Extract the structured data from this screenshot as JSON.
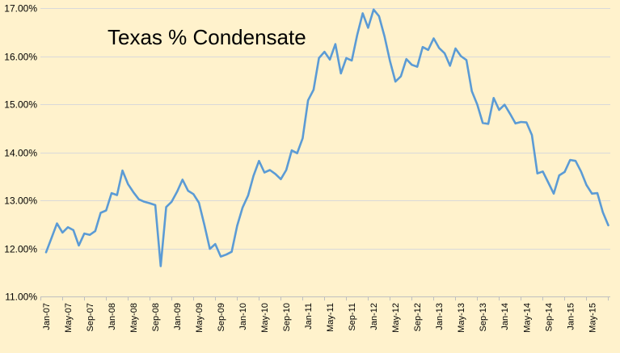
{
  "chart_data": {
    "type": "line",
    "title": "Texas % Condensate",
    "xlabel": "",
    "ylabel": "",
    "ylim": [
      11.0,
      17.0
    ],
    "y_ticks": [
      "11.00%",
      "12.00%",
      "13.00%",
      "14.00%",
      "15.00%",
      "16.00%",
      "17.00%"
    ],
    "y_tick_values": [
      11,
      12,
      13,
      14,
      15,
      16,
      17
    ],
    "x_tick_labels": [
      "Jan-07",
      "May-07",
      "Sep-07",
      "Jan-08",
      "May-08",
      "Sep-08",
      "Jan-09",
      "May-09",
      "Sep-09",
      "Jan-10",
      "May-10",
      "Sep-10",
      "Jan-11",
      "May-11",
      "Sep-11",
      "Jan-12",
      "May-12",
      "Sep-12",
      "Jan-13",
      "May-13",
      "Sep-13",
      "Jan-14",
      "May-14",
      "Sep-14",
      "Jan-15",
      "May-15"
    ],
    "grid": true,
    "legend": "none",
    "line_color": "#5b9bd5",
    "series": [
      {
        "values": [
          11.92,
          12.22,
          12.52,
          12.33,
          12.44,
          12.38,
          12.06,
          12.31,
          12.28,
          12.36,
          12.74,
          12.79,
          13.15,
          13.11,
          13.62,
          13.34,
          13.17,
          13.02,
          12.97,
          12.94,
          12.9,
          11.63,
          12.86,
          12.97,
          13.18,
          13.43,
          13.2,
          13.13,
          12.95,
          12.49,
          11.99,
          12.09,
          11.83,
          11.87,
          11.93,
          12.47,
          12.85,
          13.1,
          13.51,
          13.82,
          13.58,
          13.63,
          13.55,
          13.44,
          13.63,
          14.04,
          13.98,
          14.29,
          15.08,
          15.3,
          15.96,
          16.09,
          15.93,
          16.25,
          15.64,
          15.96,
          15.91,
          16.44,
          16.89,
          16.59,
          16.97,
          16.83,
          16.41,
          15.9,
          15.47,
          15.58,
          15.94,
          15.82,
          15.78,
          16.19,
          16.13,
          16.37,
          16.17,
          16.06,
          15.8,
          16.16,
          16.0,
          15.92,
          15.27,
          14.99,
          14.61,
          14.59,
          15.13,
          14.88,
          14.99,
          14.8,
          14.6,
          14.63,
          14.62,
          14.36,
          13.56,
          13.6,
          13.37,
          13.14,
          13.52,
          13.59,
          13.84,
          13.82,
          13.6,
          13.32,
          13.14,
          13.15,
          12.75,
          12.48
        ]
      }
    ]
  }
}
